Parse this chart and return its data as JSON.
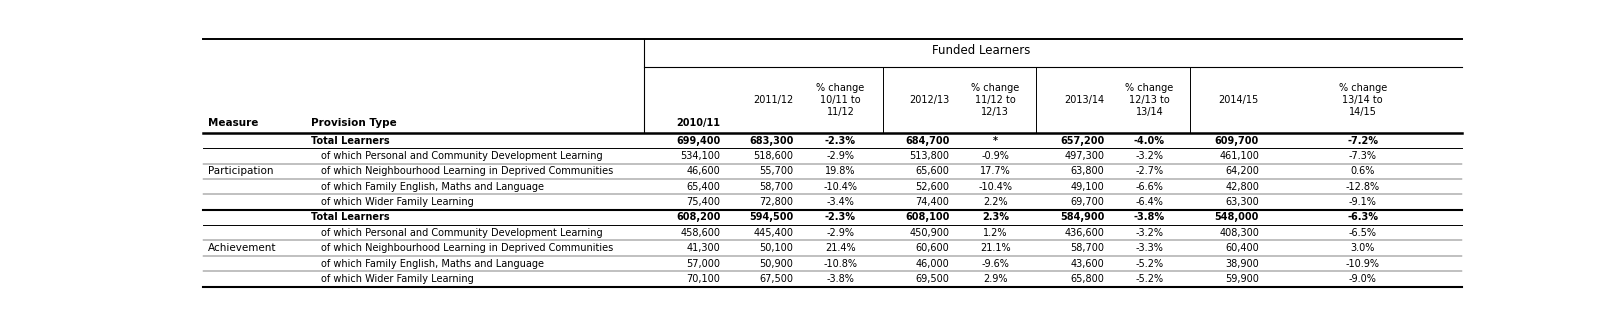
{
  "title_top": "Funded Learners",
  "rows": [
    {
      "measure": "Participation",
      "provision": "Total Learners",
      "bold": true,
      "values": [
        "699,400",
        "683,300",
        "-2.3%",
        "684,700",
        "*",
        "657,200",
        "-4.0%",
        "609,700",
        "-7.2%"
      ]
    },
    {
      "measure": "",
      "provision": "of which Personal and Community Development Learning",
      "bold": false,
      "values": [
        "534,100",
        "518,600",
        "-2.9%",
        "513,800",
        "-0.9%",
        "497,300",
        "-3.2%",
        "461,100",
        "-7.3%"
      ]
    },
    {
      "measure": "",
      "provision": "of which Neighbourhood Learning in Deprived Communities",
      "bold": false,
      "values": [
        "46,600",
        "55,700",
        "19.8%",
        "65,600",
        "17.7%",
        "63,800",
        "-2.7%",
        "64,200",
        "0.6%"
      ]
    },
    {
      "measure": "",
      "provision": "of which Family English, Maths and Language",
      "bold": false,
      "values": [
        "65,400",
        "58,700",
        "-10.4%",
        "52,600",
        "-10.4%",
        "49,100",
        "-6.6%",
        "42,800",
        "-12.8%"
      ]
    },
    {
      "measure": "",
      "provision": "of which Wider Family Learning",
      "bold": false,
      "values": [
        "75,400",
        "72,800",
        "-3.4%",
        "74,400",
        "2.2%",
        "69,700",
        "-6.4%",
        "63,300",
        "-9.1%"
      ]
    },
    {
      "measure": "Achievement",
      "provision": "Total Learners",
      "bold": true,
      "values": [
        "608,200",
        "594,500",
        "-2.3%",
        "608,100",
        "2.3%",
        "584,900",
        "-3.8%",
        "548,000",
        "-6.3%"
      ]
    },
    {
      "measure": "",
      "provision": "of which Personal and Community Development Learning",
      "bold": false,
      "values": [
        "458,600",
        "445,400",
        "-2.9%",
        "450,900",
        "1.2%",
        "436,600",
        "-3.2%",
        "408,300",
        "-6.5%"
      ]
    },
    {
      "measure": "",
      "provision": "of which Neighbourhood Learning in Deprived Communities",
      "bold": false,
      "values": [
        "41,300",
        "50,100",
        "21.4%",
        "60,600",
        "21.1%",
        "58,700",
        "-3.3%",
        "60,400",
        "3.0%"
      ]
    },
    {
      "measure": "",
      "provision": "of which Family English, Maths and Language",
      "bold": false,
      "values": [
        "57,000",
        "50,900",
        "-10.8%",
        "46,000",
        "-9.6%",
        "43,600",
        "-5.2%",
        "38,900",
        "-10.9%"
      ]
    },
    {
      "measure": "",
      "provision": "of which Wider Family Learning",
      "bold": false,
      "values": [
        "70,100",
        "67,500",
        "-3.8%",
        "69,500",
        "2.9%",
        "65,800",
        "-5.2%",
        "59,900",
        "-9.0%"
      ]
    }
  ],
  "col_labels": [
    "2010/11",
    "2011/12",
    "% change\n10/11 to\n11/12",
    "2012/13",
    "% change\n11/12 to\n12/13",
    "2013/14",
    "% change\n12/13 to\n13/14",
    "2014/15",
    "% change\n13/14 to\n14/15"
  ],
  "measure_label": "Measure",
  "provision_label": "Provision Type",
  "bg_color": "#ffffff"
}
